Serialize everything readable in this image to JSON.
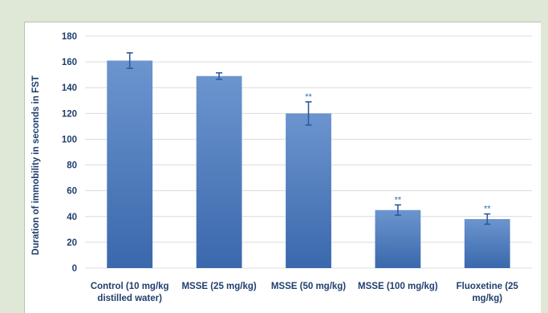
{
  "chart_data": {
    "type": "bar",
    "title": "",
    "xlabel": "",
    "ylabel": "Duration of immobility in seconds in FST",
    "ylim": [
      0,
      180
    ],
    "yticks": [
      0,
      20,
      40,
      60,
      80,
      100,
      120,
      140,
      160,
      180
    ],
    "grid": true,
    "legend": "none",
    "categories": [
      [
        "Control (10 mg/kg",
        "distilled water)"
      ],
      [
        "MSSE (25 mg/kg)"
      ],
      [
        "MSSE (50 mg/kg)"
      ],
      [
        "MSSE (100 mg/kg)"
      ],
      [
        "Fluoxetine  (25",
        "mg/kg)"
      ]
    ],
    "values": [
      161,
      149,
      120,
      45,
      38
    ],
    "errors": [
      6,
      2.5,
      9,
      4,
      4
    ],
    "annotations": [
      "",
      "",
      "**",
      "**",
      "**"
    ],
    "colors": {
      "bar_top": "#6c95cf",
      "bar_bottom": "#3a68ac",
      "error_bar": "#2e5b9a",
      "grid": "#dcdcdc",
      "text": "#1f3f6e"
    }
  }
}
